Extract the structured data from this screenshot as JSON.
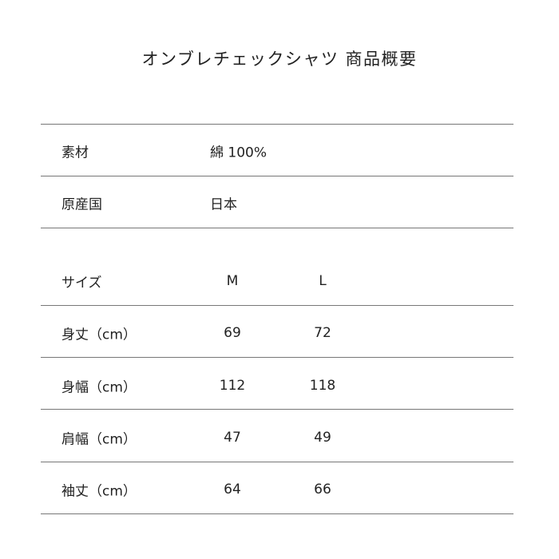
{
  "title": "オンブレチェックシャツ 商品概要",
  "info": [
    {
      "label": "素材",
      "value": "綿 100%"
    },
    {
      "label": "原産国",
      "value": "日本"
    }
  ],
  "size_table": {
    "header": {
      "label": "サイズ",
      "sizes": [
        "M",
        "L"
      ]
    },
    "rows": [
      {
        "label": "身丈（cm）",
        "values": [
          "69",
          "72"
        ]
      },
      {
        "label": "身幅（cm）",
        "values": [
          "112",
          "118"
        ]
      },
      {
        "label": "肩幅（cm）",
        "values": [
          "47",
          "49"
        ]
      },
      {
        "label": "袖丈（cm）",
        "values": [
          "64",
          "66"
        ]
      }
    ]
  }
}
